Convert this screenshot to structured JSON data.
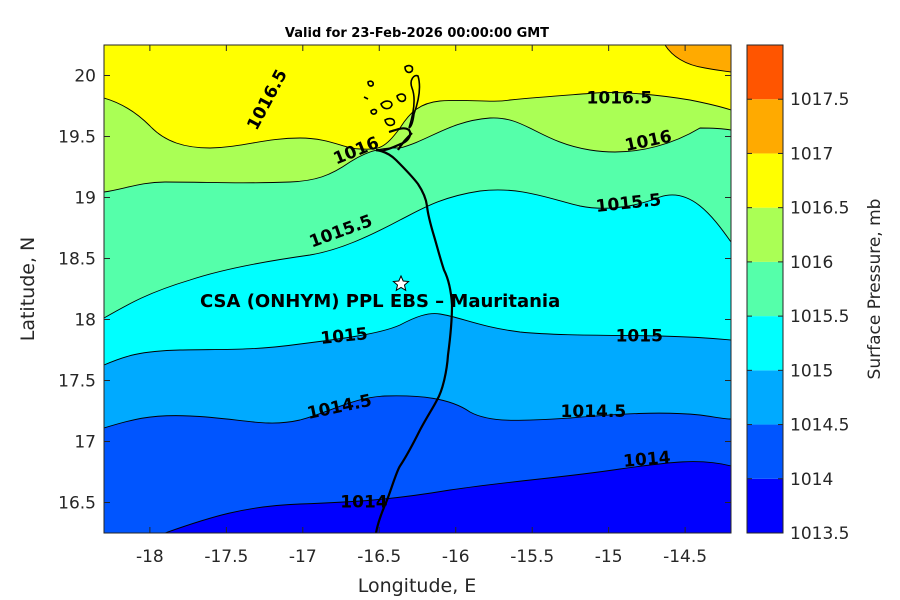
{
  "title": "Valid for 23-Feb-2026 00:00:00 GMT",
  "site_label": "CSA (ONHYM) PPL EBS  – Mauritania",
  "site_location": {
    "lon": -16.33,
    "lat": 18.27
  },
  "chart_data": {
    "type": "contour",
    "xlabel": "Longitude, E",
    "ylabel": "Latitude, N",
    "xlim": [
      -18.3,
      -14.2
    ],
    "ylim": [
      16.25,
      20.25
    ],
    "xticks": [
      "-18",
      "-17.5",
      "-17",
      "-16.5",
      "-16",
      "-15.5",
      "-15",
      "-14.5"
    ],
    "yticks": [
      "16.5",
      "17",
      "17.5",
      "18",
      "18.5",
      "19",
      "19.5",
      "20"
    ],
    "colorbar_label": "Surface Pressure, mb",
    "colorbar_ticks": [
      "1013.5",
      "1014",
      "1014.5",
      "1015",
      "1015.5",
      "1016",
      "1016.5",
      "1017",
      "1017.5"
    ],
    "levels": [
      1013.5,
      1014,
      1014.5,
      1015,
      1015.5,
      1016,
      1016.5,
      1017,
      1017.5
    ],
    "colors": [
      "#0000ff",
      "#0055ff",
      "#00aaff",
      "#00ffff",
      "#55ffaa",
      "#aaff55",
      "#ffff00",
      "#ffaa00",
      "#ff5500"
    ],
    "contour_labels": [
      {
        "text": "1016.5",
        "lon": -17.23,
        "lat": 19.8,
        "angle": -62
      },
      {
        "text": "1016.5",
        "lon": -14.93,
        "lat": 19.81,
        "angle": 0
      },
      {
        "text": "1016",
        "lon": -16.65,
        "lat": 19.38,
        "angle": -22
      },
      {
        "text": "1016",
        "lon": -14.74,
        "lat": 19.46,
        "angle": -12
      },
      {
        "text": "1015.5",
        "lon": -16.75,
        "lat": 18.72,
        "angle": -20
      },
      {
        "text": "1015.5",
        "lon": -14.87,
        "lat": 18.95,
        "angle": -6
      },
      {
        "text": "1015",
        "lon": -16.73,
        "lat": 17.86,
        "angle": -6
      },
      {
        "text": "1015",
        "lon": -14.8,
        "lat": 17.86,
        "angle": 0
      },
      {
        "text": "1014.5",
        "lon": -16.76,
        "lat": 17.28,
        "angle": -12
      },
      {
        "text": "1014.5",
        "lon": -15.1,
        "lat": 17.24,
        "angle": 0
      },
      {
        "text": "1014",
        "lon": -16.6,
        "lat": 16.5,
        "angle": 0
      },
      {
        "text": "1014",
        "lon": -14.75,
        "lat": 16.85,
        "angle": -5
      }
    ]
  }
}
